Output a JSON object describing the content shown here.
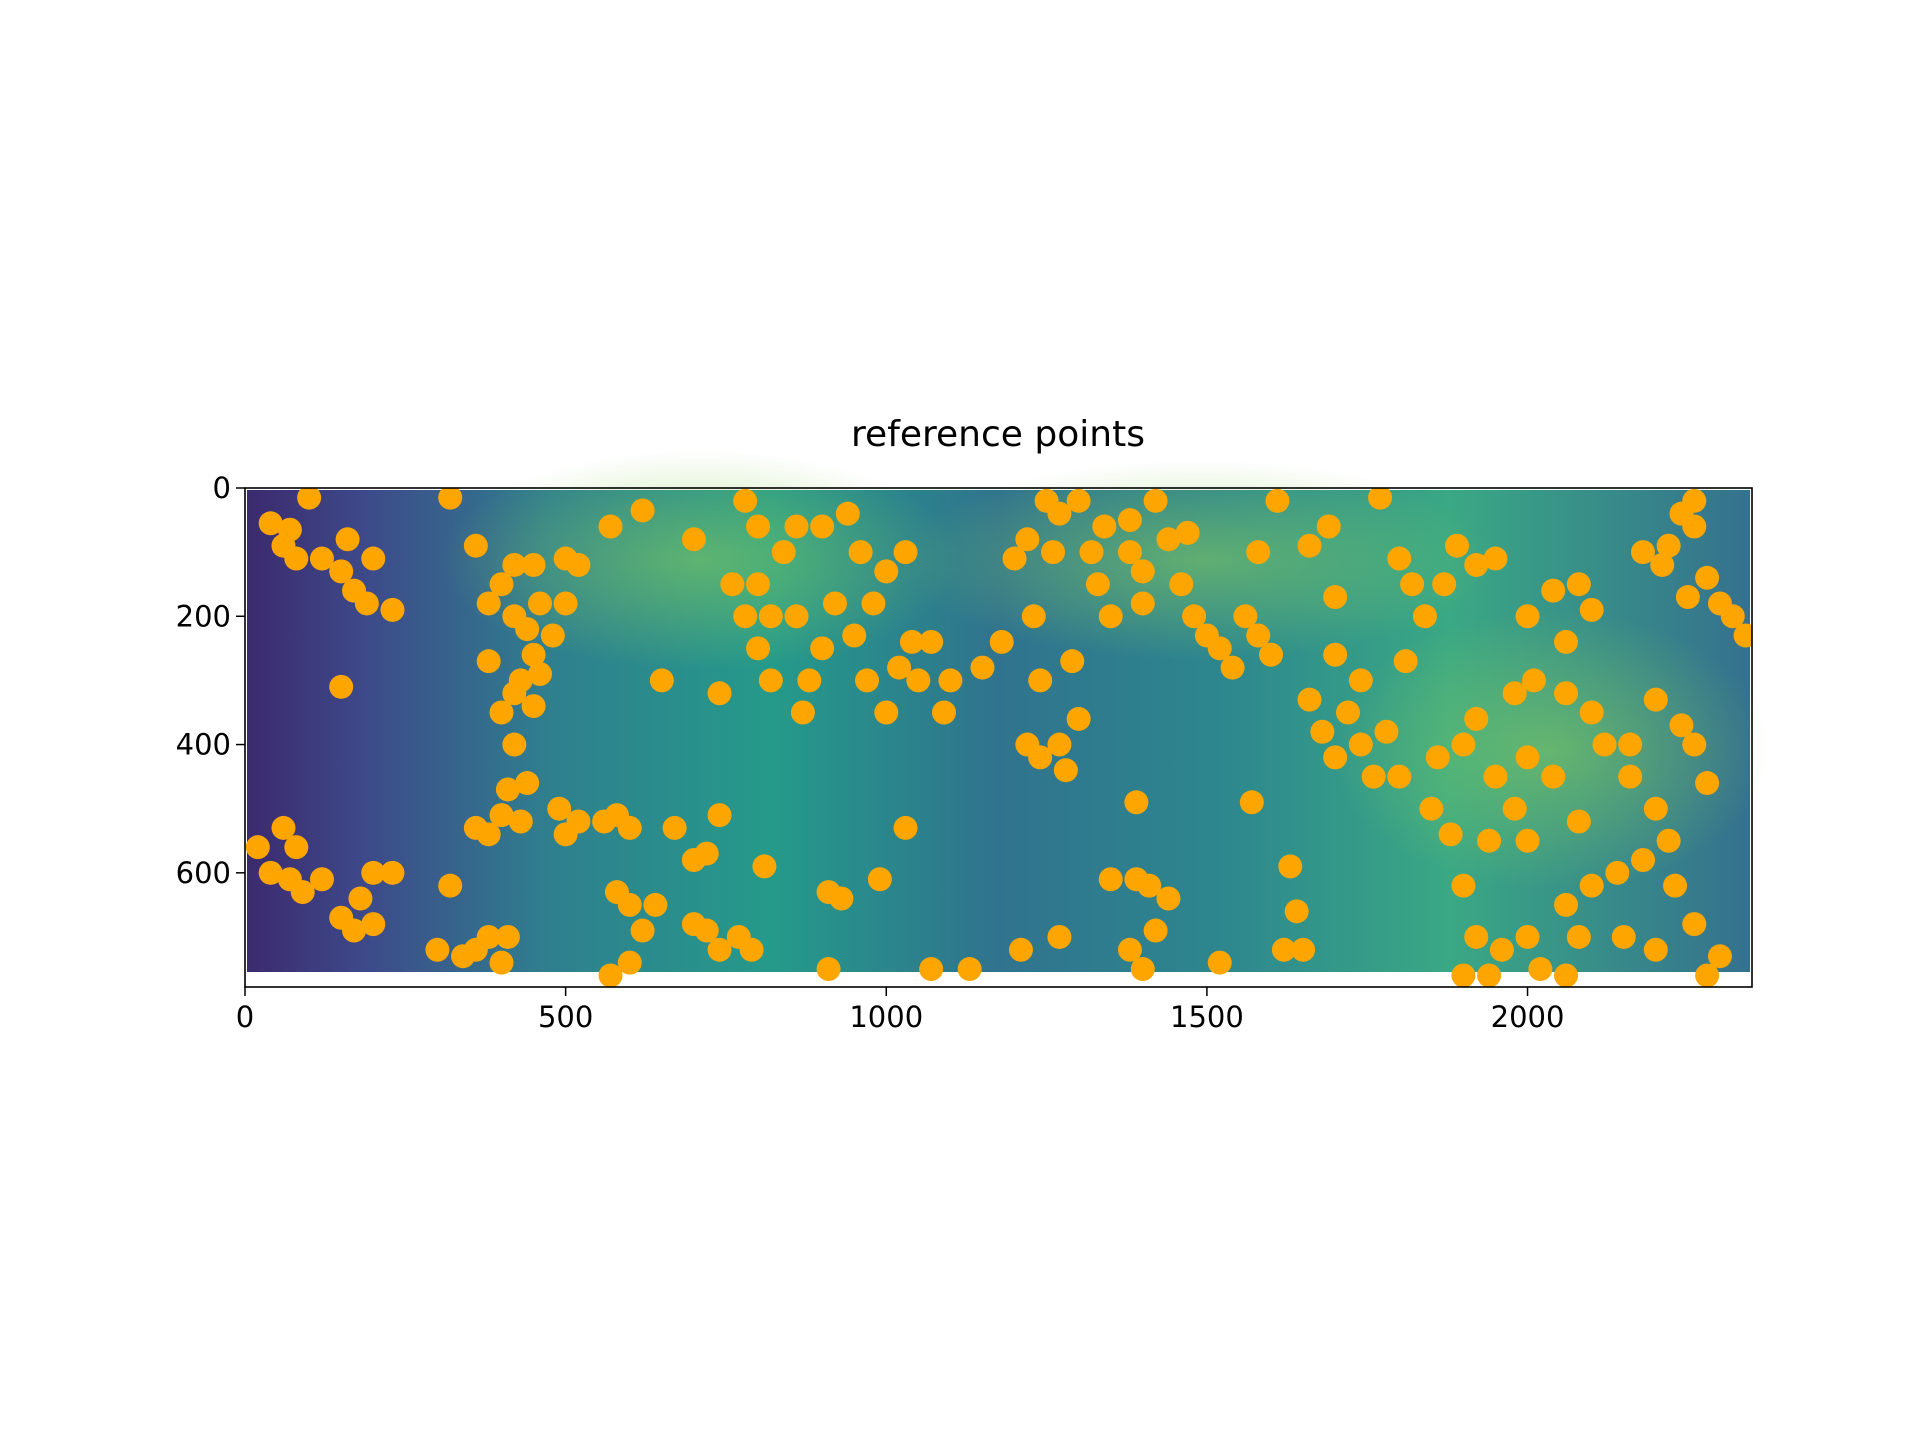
{
  "chart_data": {
    "type": "scatter",
    "title": "reference points",
    "color": "#ffa500",
    "xlim": [
      0,
      2350
    ],
    "ylim": [
      778,
      0
    ],
    "xticks": [
      0,
      500,
      1000,
      1500,
      2000
    ],
    "yticks": [
      0,
      200,
      400,
      600
    ],
    "x": [
      40,
      70,
      100,
      60,
      80,
      120,
      150,
      160,
      170,
      200,
      230,
      190,
      150,
      20,
      40,
      60,
      80,
      70,
      90,
      120,
      150,
      180,
      200,
      230,
      200,
      170,
      300,
      320,
      360,
      380,
      410,
      400,
      340,
      320,
      360,
      380,
      400,
      420,
      440,
      460,
      450,
      430,
      400,
      420,
      450,
      380,
      420,
      410,
      440,
      430,
      360,
      380,
      400,
      420,
      450,
      500,
      520,
      500,
      480,
      460,
      490,
      520,
      560,
      580,
      600,
      500,
      570,
      620,
      580,
      600,
      620,
      640,
      570,
      600,
      650,
      670,
      700,
      720,
      740,
      740,
      700,
      700,
      720,
      740,
      770,
      790,
      780,
      800,
      760,
      780,
      800,
      820,
      840,
      860,
      870,
      880,
      900,
      920,
      940,
      950,
      970,
      1000,
      1020,
      1040,
      1000,
      980,
      1030,
      1050,
      900,
      860,
      960,
      800,
      820,
      810,
      910,
      930,
      990,
      1030,
      910,
      1070,
      1070,
      1100,
      1090,
      1150,
      1180,
      1200,
      1220,
      1230,
      1260,
      1270,
      1240,
      1290,
      1220,
      1240,
      1270,
      1280,
      1300,
      1210,
      1270,
      1130,
      1250,
      1300,
      1340,
      1380,
      1400,
      1420,
      1440,
      1460,
      1480,
      1500,
      1520,
      1540,
      1330,
      1350,
      1380,
      1320,
      1400,
      1470,
      1560,
      1580,
      1600,
      1580,
      1610,
      1390,
      1350,
      1390,
      1410,
      1440,
      1420,
      1380,
      1400,
      1520,
      1570,
      1630,
      1640,
      1620,
      1650,
      1660,
      1690,
      1700,
      1660,
      1680,
      1700,
      1720,
      1740,
      1760,
      1780,
      1700,
      1740,
      1770,
      1800,
      1820,
      1810,
      1840,
      1870,
      1890,
      1920,
      1950,
      1800,
      1850,
      1880,
      1900,
      1920,
      1950,
      1980,
      2000,
      1860,
      1940,
      2000,
      2010,
      1900,
      1920,
      1940,
      1900,
      1960,
      2000,
      2020,
      2060,
      2060,
      2080,
      2000,
      2040,
      2060,
      2080,
      2100,
      2060,
      2100,
      2120,
      2160,
      2200,
      2220,
      2180,
      2140,
      2100,
      2150,
      2200,
      2230,
      2260,
      2280,
      2300,
      2200,
      2240,
      2260,
      2280,
      2220,
      2240,
      2260,
      2280,
      2300,
      2340,
      2320,
      2180,
      2210,
      2260,
      2250,
      2160,
      2040,
      2080,
      1980
    ],
    "values": [
      55,
      65,
      15,
      90,
      110,
      110,
      130,
      80,
      160,
      110,
      190,
      180,
      310,
      560,
      600,
      530,
      560,
      610,
      630,
      610,
      670,
      640,
      600,
      600,
      680,
      690,
      720,
      620,
      720,
      700,
      700,
      740,
      730,
      15,
      90,
      180,
      150,
      200,
      220,
      180,
      260,
      300,
      350,
      320,
      340,
      270,
      400,
      470,
      460,
      520,
      530,
      540,
      510,
      120,
      120,
      110,
      120,
      180,
      230,
      290,
      500,
      520,
      520,
      510,
      530,
      540,
      60,
      35,
      630,
      650,
      690,
      650,
      760,
      740,
      300,
      530,
      580,
      570,
      510,
      320,
      80,
      680,
      690,
      720,
      700,
      720,
      20,
      60,
      150,
      200,
      250,
      300,
      100,
      200,
      350,
      300,
      250,
      180,
      40,
      230,
      300,
      350,
      280,
      240,
      130,
      180,
      100,
      300,
      60,
      60,
      100,
      150,
      200,
      590,
      630,
      640,
      610,
      530,
      750,
      750,
      240,
      300,
      350,
      280,
      240,
      110,
      80,
      200,
      100,
      40,
      300,
      270,
      400,
      420,
      400,
      440,
      360,
      720,
      700,
      750,
      20,
      20,
      60,
      100,
      130,
      20,
      80,
      150,
      200,
      230,
      250,
      280,
      150,
      200,
      50,
      100,
      180,
      70,
      200,
      230,
      260,
      100,
      20,
      490,
      610,
      610,
      620,
      640,
      690,
      720,
      750,
      740,
      490,
      590,
      660,
      720,
      720,
      90,
      60,
      170,
      330,
      380,
      420,
      350,
      400,
      450,
      380,
      260,
      300,
      15,
      110,
      150,
      270,
      200,
      150,
      90,
      120,
      110,
      450,
      500,
      540,
      400,
      360,
      450,
      500,
      420,
      420,
      550,
      550,
      300,
      620,
      700,
      760,
      760,
      720,
      700,
      750,
      760,
      650,
      700,
      200,
      160,
      240,
      150,
      190,
      320,
      350,
      400,
      450,
      500,
      550,
      580,
      600,
      620,
      700,
      720,
      620,
      680,
      760,
      730,
      330,
      370,
      400,
      460,
      90,
      40,
      60,
      140,
      180,
      230,
      200,
      100,
      120,
      20,
      170,
      400,
      450,
      520,
      320
    ]
  }
}
